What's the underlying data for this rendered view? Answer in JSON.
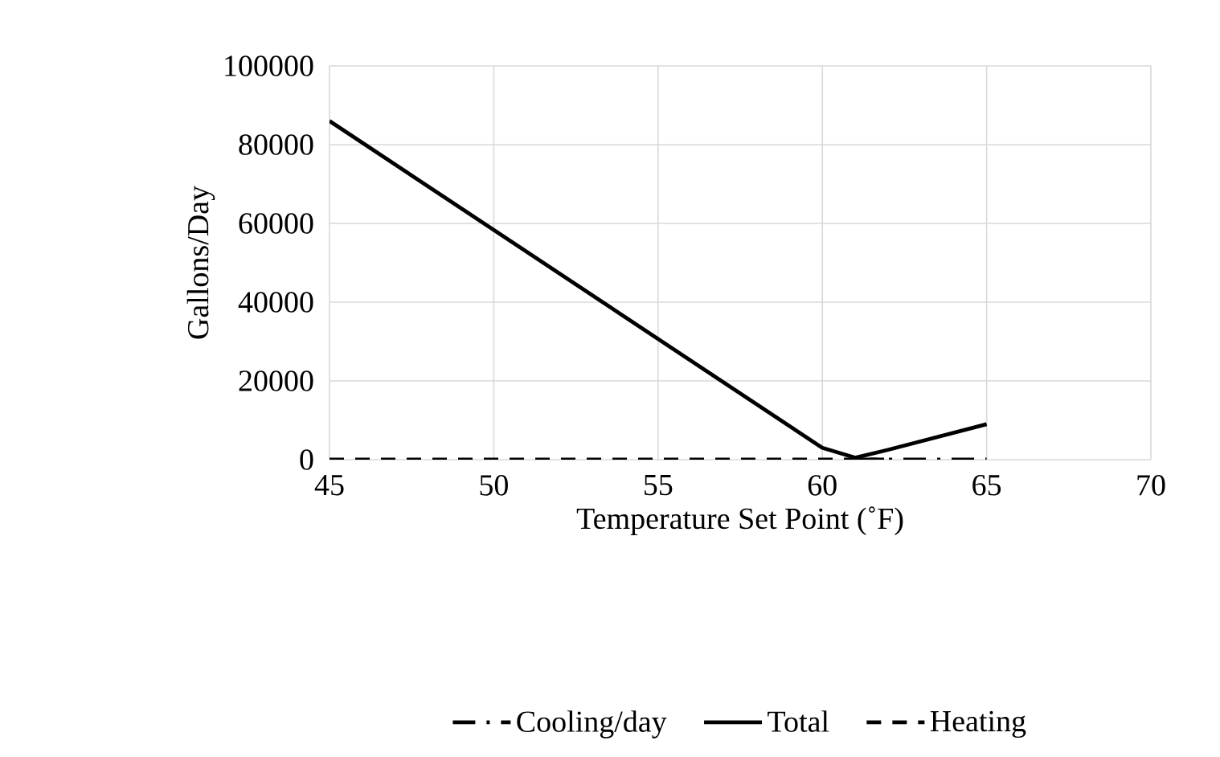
{
  "chart_data": {
    "type": "line",
    "xlabel": "Temperature Set Point (˚F)",
    "ylabel": "Gallons/Day",
    "xlim": [
      45,
      70
    ],
    "xticks": [
      45,
      50,
      55,
      60,
      65,
      70
    ],
    "ylim": [
      0,
      100000
    ],
    "yticks": [
      0,
      20000,
      40000,
      60000,
      80000,
      100000
    ],
    "grid": true,
    "legend": "bottom",
    "marker": "none",
    "series": [
      {
        "name": "Cooling/day",
        "color": "#000000",
        "line_style": "dashdot",
        "x": [
          61,
          65
        ],
        "values": [
          0,
          0
        ]
      },
      {
        "name": "Total",
        "color": "#000000",
        "line_style": "solid",
        "x": [
          45,
          60,
          61,
          62,
          65
        ],
        "values": [
          86000,
          3000,
          500,
          2500,
          9000
        ]
      },
      {
        "name": "Heating",
        "color": "#000000",
        "line_style": "dashed",
        "x": [
          45,
          62
        ],
        "values": [
          0,
          0
        ]
      }
    ]
  }
}
